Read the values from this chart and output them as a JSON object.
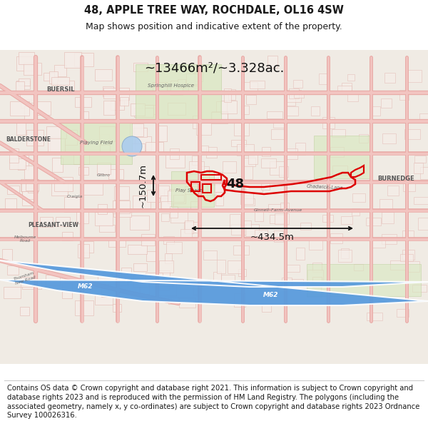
{
  "title": "48, APPLE TREE WAY, ROCHDALE, OL16 4SW",
  "subtitle": "Map shows position and indicative extent of the property.",
  "footer": "Contains OS data © Crown copyright and database right 2021. This information is subject to Crown copyright and database rights 2023 and is reproduced with the permission of HM Land Registry. The polygons (including the associated geometry, namely x, y co-ordinates) are subject to Crown copyright and database rights 2023 Ordnance Survey 100026316.",
  "area_label": "~13466m²/~3.328ac.",
  "width_label": "~434.5m",
  "height_label": "~150.7m",
  "property_number": "48",
  "title_fontsize": 10.5,
  "subtitle_fontsize": 9,
  "footer_fontsize": 7.2,
  "figure_width": 6.0,
  "figure_height": 6.25,
  "title_color": "#1a1a1a",
  "footer_color": "#1a1a1a",
  "map_bg": "#f0ebe4",
  "road_pink": "#f2c4c0",
  "road_pink_dark": "#e8a8a4",
  "block_fill": "#f5ede8",
  "block_edge": "#e0b0a8",
  "green_fill": "#d8e8c0",
  "green_edge": "#b8cc98",
  "motorway_fill": "#5599dd",
  "motorway_text": "#ffffff",
  "water_fill": "#aaccee",
  "property_color": "#dd0000",
  "annotation_color": "#111111",
  "label_color": "#555555",
  "italic_label_color": "#666666"
}
